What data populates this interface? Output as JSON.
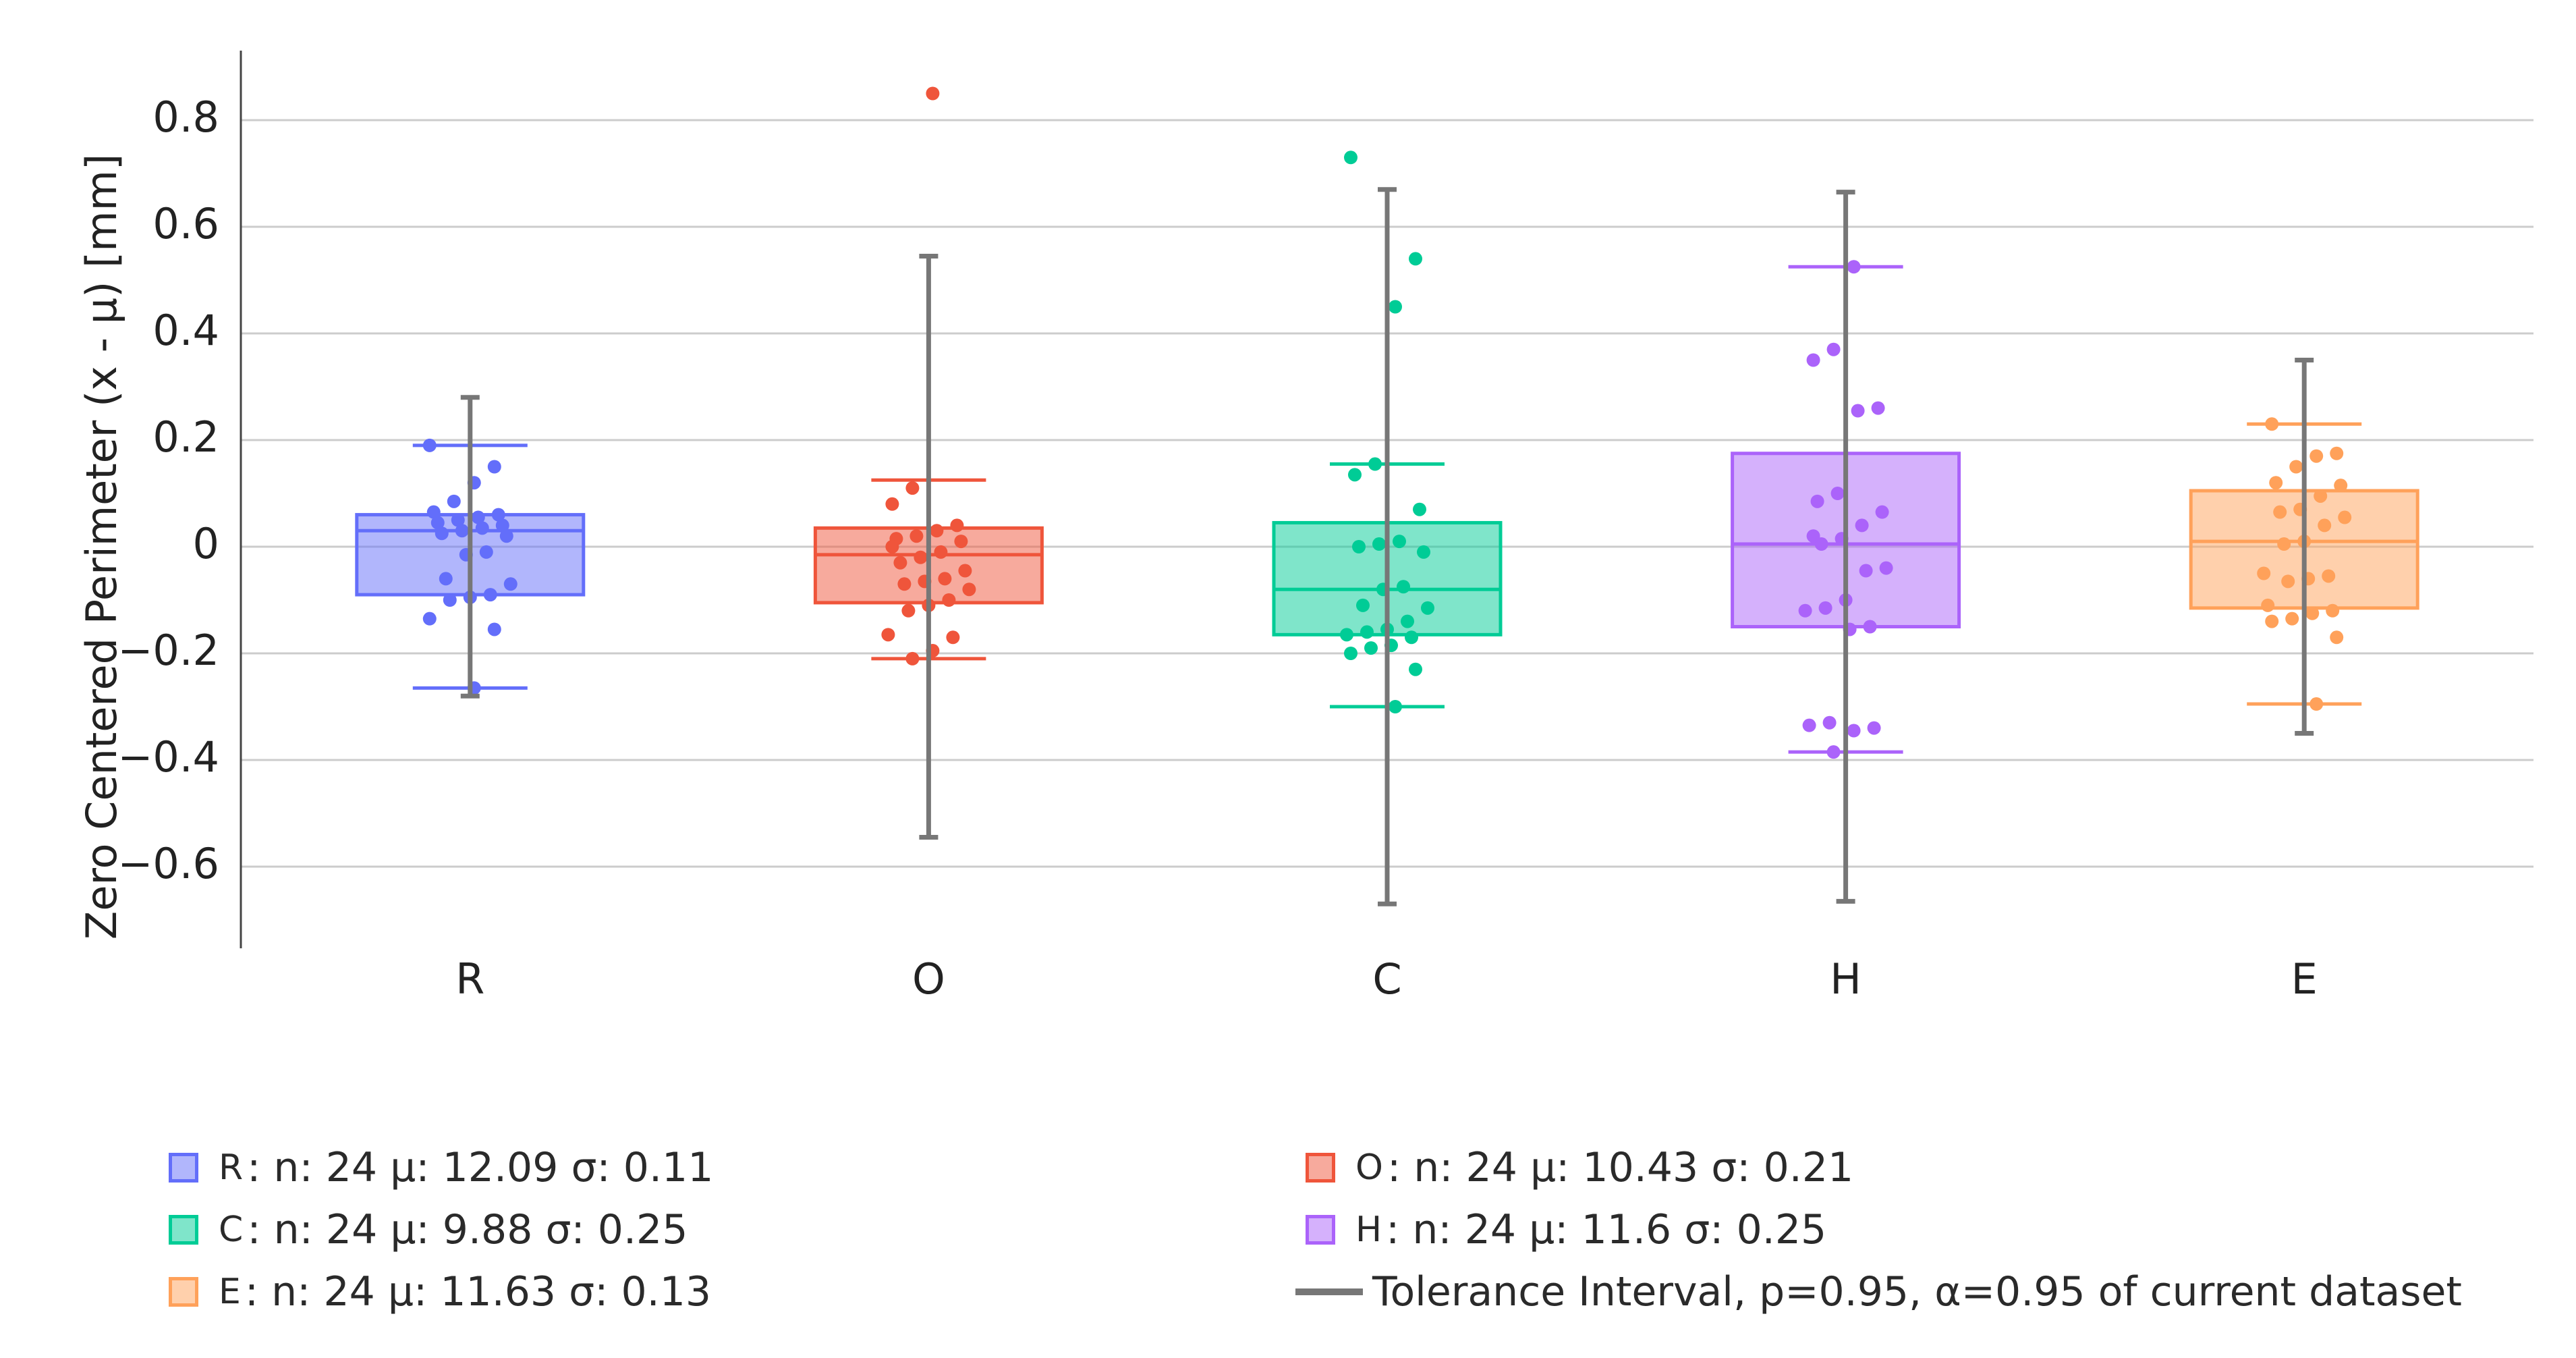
{
  "chart_data": {
    "type": "box",
    "ylabel": "Zero Centered Perimeter (x - μ) [mm]",
    "ylim": [
      -0.74,
      0.93
    ],
    "yticks": [
      0.8,
      0.6,
      0.4,
      0.2,
      0,
      -0.2,
      -0.4,
      -0.6
    ],
    "ytick_labels": [
      "0.8",
      "0.6",
      "0.4",
      "0.2",
      "0",
      "−0.2",
      "−0.4",
      "−0.6"
    ],
    "grid": true,
    "categories": [
      "R",
      "O",
      "C",
      "H",
      "E"
    ],
    "tolerance_color": "#777777",
    "series": [
      {
        "name": "R",
        "color": "#636efa",
        "box": {
          "q1": -0.09,
          "median": 0.03,
          "q3": 0.06,
          "whisker_low": -0.265,
          "whisker_high": 0.19
        },
        "tolerance": [
          -0.28,
          0.28
        ],
        "points": [
          0.19,
          0.15,
          0.12,
          0.085,
          0.065,
          0.06,
          0.055,
          0.05,
          0.045,
          0.04,
          0.035,
          0.03,
          0.025,
          0.02,
          -0.01,
          -0.015,
          -0.06,
          -0.07,
          -0.09,
          -0.095,
          -0.1,
          -0.135,
          -0.155,
          -0.265
        ],
        "legend": {
          "label": "R",
          "text": " : n: 24 μ: 12.09 σ: 0.11"
        }
      },
      {
        "name": "O",
        "color": "#ef553b",
        "box": {
          "q1": -0.105,
          "median": -0.015,
          "q3": 0.035,
          "whisker_low": -0.21,
          "whisker_high": 0.125
        },
        "tolerance": [
          -0.545,
          0.545
        ],
        "points": [
          0.85,
          0.11,
          0.08,
          0.04,
          0.03,
          0.02,
          0.015,
          0.01,
          -0.01,
          -0.02,
          -0.03,
          -0.045,
          -0.06,
          -0.065,
          -0.07,
          -0.08,
          -0.1,
          -0.11,
          -0.12,
          -0.165,
          -0.17,
          -0.195,
          -0.21,
          0.0
        ],
        "legend": {
          "label": "O",
          "text": " : n: 24 μ: 10.43 σ: 0.21"
        }
      },
      {
        "name": "C",
        "color": "#00cc96",
        "box": {
          "q1": -0.165,
          "median": -0.08,
          "q3": 0.045,
          "whisker_low": -0.3,
          "whisker_high": 0.155
        },
        "tolerance": [
          -0.67,
          0.67
        ],
        "points": [
          0.73,
          0.54,
          0.45,
          0.155,
          0.135,
          0.07,
          0.01,
          0.005,
          0.0,
          -0.01,
          -0.075,
          -0.08,
          -0.11,
          -0.115,
          -0.14,
          -0.155,
          -0.16,
          -0.165,
          -0.17,
          -0.185,
          -0.19,
          -0.2,
          -0.23,
          -0.3
        ],
        "legend": {
          "label": "C",
          "text": " : n: 24 μ: 9.88 σ: 0.25"
        }
      },
      {
        "name": "H",
        "color": "#ab63fa",
        "box": {
          "q1": -0.15,
          "median": 0.005,
          "q3": 0.175,
          "whisker_low": -0.385,
          "whisker_high": 0.525
        },
        "tolerance": [
          -0.665,
          0.665
        ],
        "points": [
          0.525,
          0.37,
          0.35,
          0.26,
          0.255,
          0.1,
          0.085,
          0.065,
          0.04,
          0.015,
          0.005,
          -0.04,
          -0.045,
          -0.1,
          -0.115,
          -0.12,
          -0.15,
          -0.155,
          -0.33,
          -0.335,
          -0.34,
          -0.345,
          -0.385,
          0.02
        ],
        "legend": {
          "label": "H",
          "text": " : n: 24 μ: 11.6 σ: 0.25"
        }
      },
      {
        "name": "E",
        "color": "#ffa15a",
        "box": {
          "q1": -0.115,
          "median": 0.01,
          "q3": 0.105,
          "whisker_low": -0.295,
          "whisker_high": 0.23
        },
        "tolerance": [
          -0.35,
          0.35
        ],
        "points": [
          0.23,
          0.175,
          0.17,
          0.15,
          0.12,
          0.115,
          0.095,
          0.07,
          0.065,
          0.055,
          0.04,
          0.01,
          0.005,
          -0.05,
          -0.055,
          -0.06,
          -0.065,
          -0.11,
          -0.12,
          -0.125,
          -0.135,
          -0.14,
          -0.17,
          -0.295
        ],
        "legend": {
          "label": "E",
          "text": " : n: 24 μ: 11.63 σ: 0.13"
        }
      }
    ],
    "tolerance_legend": "Tolerance Interval, p=0.95, α=0.95 of current dataset"
  }
}
